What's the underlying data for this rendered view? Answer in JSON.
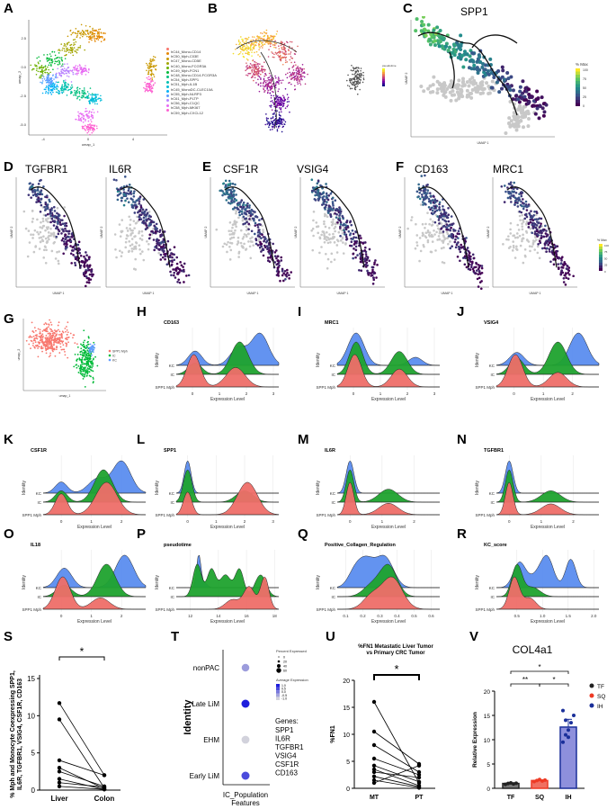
{
  "panels": {
    "A": {
      "label": "A",
      "xlabel": "umap_1",
      "ylabel": "umap_2",
      "yticks": [
        "2.5",
        "0.0",
        "-2.5",
        "-5.0"
      ],
      "xticks": [
        "-4",
        "0",
        "4"
      ],
      "legend": [
        {
          "text": "hC44_Mono-CD14",
          "color": "#f8766d"
        },
        {
          "text": "hC50_Mph-C03E",
          "color": "#e58700"
        },
        {
          "text": "hC47_Mono-CD5E",
          "color": "#c99800"
        },
        {
          "text": "hC40_Mono-FCGR3A",
          "color": "#a3a500"
        },
        {
          "text": "hC49_Mph-FCN1",
          "color": "#6bb100"
        },
        {
          "text": "hC48_Mono-CD14-FCGR3A",
          "color": "#00ba38"
        },
        {
          "text": "hC54_Mph-SPP1",
          "color": "#00bf7d"
        },
        {
          "text": "hC51_Mph-IL1B",
          "color": "#00c0af"
        },
        {
          "text": "hC45_MonoDC-CLEC10A",
          "color": "#00bcd8"
        },
        {
          "text": "hC55_Mph-NLRP3",
          "color": "#00b0f6"
        },
        {
          "text": "hC61_Mph-PLTP",
          "color": "#619cff"
        },
        {
          "text": "hC56_Mph-C1QC",
          "color": "#b983ff"
        },
        {
          "text": "hC58_Mph-MKI67",
          "color": "#e76bf3"
        },
        {
          "text": "hC59_Mph-CXCL12",
          "color": "#fd61d1"
        }
      ]
    },
    "B": {
      "label": "B",
      "legend_title": "pseudotime"
    },
    "C": {
      "label": "C",
      "gene": "SPP1",
      "xlabel": "UMAP 1",
      "ylabel": "UMAP 2",
      "legend_title": "% Max",
      "legend_ticks": [
        "100",
        "75",
        "50",
        "25",
        "0"
      ]
    },
    "D": {
      "label": "D",
      "genes": [
        "TGFBR1",
        "IL6R"
      ],
      "xlabel": "UMAP 1",
      "ylabel": "UMAP 2"
    },
    "E": {
      "label": "E",
      "genes": [
        "CSF1R",
        "VSIG4"
      ],
      "xlabel": "UMAP 1",
      "ylabel": "UMAP 2"
    },
    "F": {
      "label": "F",
      "genes": [
        "CD163",
        "MRC1"
      ],
      "xlabel": "UMAP 1",
      "ylabel": "UMAP 2",
      "legend_title": "% Max",
      "legend_ticks": [
        "100",
        "75",
        "50",
        "25",
        "0"
      ]
    },
    "G": {
      "label": "G",
      "xlabel": "umap_1",
      "ylabel": "umap_2",
      "legend": [
        {
          "text": "SPP1 Mph",
          "color": "#f8766d"
        },
        {
          "text": "IC",
          "color": "#00ba38"
        },
        {
          "text": "KC",
          "color": "#619cff"
        }
      ]
    }
  },
  "ridges": {
    "identity_label": "Identity",
    "xlabel": "Expression Level",
    "levels": [
      "KC",
      "IC",
      "SPP1 Mph"
    ],
    "colors": {
      "KC": "#5b8def",
      "IC": "#1fa22e",
      "SPP1 Mph": "#ee6e68"
    },
    "items": [
      {
        "label": "H",
        "title": "CD163",
        "ticks": [
          "0",
          "1",
          "2",
          "3"
        ],
        "min": -0.6,
        "max": 3.2,
        "KC": [
          [
            2.5,
            0.32,
            1.0
          ],
          [
            1.7,
            0.3,
            0.55
          ],
          [
            0.1,
            0.25,
            0.45
          ]
        ],
        "IC": [
          [
            1.75,
            0.32,
            1.0
          ],
          [
            0.1,
            0.25,
            0.35
          ]
        ],
        "SPP1 Mph": [
          [
            0.05,
            0.25,
            1.0
          ],
          [
            1.6,
            0.35,
            0.6
          ]
        ]
      },
      {
        "label": "I",
        "title": "MRC1",
        "ticks": [
          "0",
          "1",
          "2",
          "3"
        ],
        "min": -0.6,
        "max": 3.2,
        "KC": [
          [
            0.1,
            0.3,
            1.0
          ],
          [
            2.3,
            0.25,
            0.25
          ]
        ],
        "IC": [
          [
            0.1,
            0.25,
            0.85
          ],
          [
            1.7,
            0.3,
            0.6
          ]
        ],
        "SPP1 Mph": [
          [
            0.05,
            0.25,
            1.0
          ],
          [
            1.7,
            0.3,
            0.55
          ]
        ]
      },
      {
        "label": "J",
        "title": "VSIG4",
        "ticks": [
          "0",
          "1",
          "2"
        ],
        "min": -0.6,
        "max": 2.9,
        "KC": [
          [
            2.2,
            0.3,
            1.0
          ],
          [
            0.1,
            0.25,
            0.4
          ]
        ],
        "IC": [
          [
            1.5,
            0.3,
            0.9
          ],
          [
            0.1,
            0.25,
            0.45
          ]
        ],
        "SPP1 Mph": [
          [
            0.05,
            0.25,
            1.0
          ],
          [
            1.5,
            0.3,
            0.45
          ]
        ]
      },
      {
        "label": "K",
        "title": "CSF1R",
        "ticks": [
          "0",
          "1",
          "2"
        ],
        "min": -0.6,
        "max": 2.8,
        "KC": [
          [
            2.0,
            0.3,
            1.0
          ],
          [
            1.2,
            0.3,
            0.45
          ],
          [
            0.0,
            0.2,
            0.35
          ]
        ],
        "IC": [
          [
            1.4,
            0.3,
            1.0
          ],
          [
            0.0,
            0.2,
            0.35
          ]
        ],
        "SPP1 Mph": [
          [
            1.5,
            0.35,
            0.85
          ],
          [
            0.0,
            0.2,
            0.55
          ]
        ]
      },
      {
        "label": "L",
        "title": "SPP1",
        "ticks": [
          "0",
          "1",
          "2",
          "3"
        ],
        "min": -0.4,
        "max": 3.2,
        "KC": [
          [
            0.0,
            0.12,
            1.0
          ]
        ],
        "IC": [
          [
            0.0,
            0.15,
            1.0
          ],
          [
            2.0,
            0.3,
            0.35
          ]
        ],
        "SPP1 Mph": [
          [
            2.1,
            0.35,
            0.5
          ],
          [
            0.0,
            0.15,
            0.35
          ]
        ]
      },
      {
        "label": "M",
        "title": "IL6R",
        "ticks": [
          "0",
          "1",
          "2"
        ],
        "min": -0.4,
        "max": 2.8,
        "KC": [
          [
            0.0,
            0.12,
            1.0
          ]
        ],
        "IC": [
          [
            0.0,
            0.12,
            1.0
          ],
          [
            1.2,
            0.3,
            0.4
          ]
        ],
        "SPP1 Mph": [
          [
            0.0,
            0.12,
            0.85
          ],
          [
            1.2,
            0.3,
            0.3
          ]
        ]
      },
      {
        "label": "N",
        "title": "TGFBR1",
        "ticks": [
          "0",
          "1",
          "2"
        ],
        "min": -0.4,
        "max": 2.8,
        "KC": [
          [
            0.0,
            0.12,
            1.0
          ]
        ],
        "IC": [
          [
            0.0,
            0.12,
            1.0
          ],
          [
            1.3,
            0.3,
            0.35
          ]
        ],
        "SPP1 Mph": [
          [
            0.0,
            0.12,
            0.9
          ],
          [
            1.3,
            0.3,
            0.3
          ]
        ]
      },
      {
        "label": "O",
        "title": "IL18",
        "ticks": [
          "0",
          "1",
          "2"
        ],
        "min": -0.6,
        "max": 2.8,
        "KC": [
          [
            2.1,
            0.3,
            1.0
          ],
          [
            0.1,
            0.25,
            0.6
          ]
        ],
        "IC": [
          [
            1.5,
            0.3,
            1.0
          ],
          [
            0.1,
            0.25,
            0.35
          ]
        ],
        "SPP1 Mph": [
          [
            0.05,
            0.25,
            1.0
          ],
          [
            1.3,
            0.3,
            0.35
          ]
        ]
      },
      {
        "label": "P",
        "title": "pseudotime",
        "ticks": [
          "12",
          "14",
          "16",
          "18"
        ],
        "min": 11.0,
        "max": 18.3,
        "KC": [
          [
            12.6,
            0.15,
            1.0
          ],
          [
            13.0,
            0.2,
            0.15
          ]
        ],
        "IC": [
          [
            12.5,
            0.3,
            0.3
          ],
          [
            13.5,
            0.3,
            0.25
          ],
          [
            14.5,
            0.4,
            0.2
          ],
          [
            15.5,
            0.3,
            0.25
          ],
          [
            17.0,
            0.4,
            0.2
          ]
        ],
        "SPP1 Mph": [
          [
            17.3,
            0.3,
            0.5
          ],
          [
            16.2,
            0.4,
            0.35
          ],
          [
            15.0,
            0.5,
            0.15
          ]
        ]
      },
      {
        "label": "Q",
        "title": "Positive_Collagen_Regulation",
        "ticks": [
          "0.1",
          "0.2",
          "0.3",
          "0.4",
          "0.5",
          "0.6"
        ],
        "min": 0.05,
        "max": 0.65,
        "KC": [
          [
            0.22,
            0.05,
            0.85
          ],
          [
            0.33,
            0.05,
            0.95
          ],
          [
            0.15,
            0.04,
            0.4
          ]
        ],
        "IC": [
          [
            0.35,
            0.05,
            1.0
          ],
          [
            0.25,
            0.05,
            0.35
          ]
        ],
        "SPP1 Mph": [
          [
            0.37,
            0.06,
            1.0
          ],
          [
            0.25,
            0.05,
            0.4
          ]
        ]
      },
      {
        "label": "R",
        "title": "KC_score",
        "ticks": [
          "0.5",
          "1.0",
          "1.5",
          "2.0"
        ],
        "min": 0.1,
        "max": 2.1,
        "KC": [
          [
            0.55,
            0.12,
            0.7
          ],
          [
            1.1,
            0.12,
            0.75
          ],
          [
            1.55,
            0.1,
            0.8
          ],
          [
            0.9,
            0.15,
            0.35
          ]
        ],
        "IC": [
          [
            0.5,
            0.1,
            1.0
          ],
          [
            0.8,
            0.15,
            0.3
          ]
        ],
        "SPP1 Mph": [
          [
            0.45,
            0.1,
            1.0
          ],
          [
            0.75,
            0.12,
            0.35
          ]
        ]
      }
    ]
  },
  "S": {
    "label": "S",
    "ylabel": "% Mph and Monocyte Coexpressing SPP1, IL6R, TGFBR1, VSIG4, CSF1R, CD163",
    "categories": [
      "Liver",
      "Colon"
    ],
    "yticks": [
      "0",
      "5",
      "10",
      "15"
    ],
    "significance": "*"
  },
  "T": {
    "label": "T",
    "ylabel": "Identity",
    "xlabel": "IC_Population Features",
    "rows": [
      "nonPAC",
      "Late LiM",
      "EHM",
      "Early LiM"
    ],
    "legend_pct_title": "Percent Expressed",
    "legend_pct": [
      "0",
      "20",
      "40",
      "60"
    ],
    "legend_avg_title": "Average Expression",
    "legend_avg": [
      "1.0",
      "0.5",
      "0.0",
      "-0.5",
      "-1.0"
    ],
    "genes_title": "Genes:",
    "genes": [
      "SPP1",
      "IL6R",
      "TGFBR1",
      "VSIG4",
      "CSF1R",
      "CD163"
    ]
  },
  "U": {
    "label": "U",
    "title_line1": "%FN1 Metastatic Liver Tumor",
    "title_line2": "vs Primary CRC Tumor",
    "ylabel": "%FN1",
    "categories": [
      "MT",
      "PT"
    ],
    "yticks": [
      "0",
      "5",
      "10",
      "15",
      "20"
    ],
    "significance": "*"
  },
  "V": {
    "label": "V",
    "title": "COL4a1",
    "ylabel": "Relative Expression",
    "categories": [
      "TF",
      "SQ",
      "IH"
    ],
    "yticks": [
      "0",
      "5",
      "10",
      "15",
      "20"
    ],
    "significance": [
      "**",
      "*",
      "*"
    ],
    "legend": [
      {
        "text": "TF",
        "color": "#222222"
      },
      {
        "text": "SQ",
        "color": "#ee3a24"
      },
      {
        "text": "IH",
        "color": "#1a2f9a"
      }
    ]
  },
  "chart_data": [
    {
      "type": "scatter",
      "panel": "S",
      "title": "",
      "xlabel": "",
      "ylabel": "% Mph and Monocyte Coexpressing SPP1, IL6R, TGFBR1, VSIG4, CSF1R, CD163",
      "categories": [
        "Liver",
        "Colon"
      ],
      "ylim": [
        0,
        15
      ],
      "pairs": [
        [
          11.7,
          2.0
        ],
        [
          9.5,
          0.3
        ],
        [
          4.0,
          2.0
        ],
        [
          3.0,
          0.2
        ],
        [
          2.5,
          0.5
        ],
        [
          1.5,
          0.1
        ],
        [
          1.0,
          0.4
        ],
        [
          0.5,
          0.1
        ]
      ]
    },
    {
      "type": "scatter",
      "panel": "U",
      "title": "%FN1 Metastatic Liver Tumor vs Primary CRC Tumor",
      "xlabel": "",
      "ylabel": "%FN1",
      "categories": [
        "MT",
        "PT"
      ],
      "ylim": [
        0,
        20
      ],
      "pairs": [
        [
          16.0,
          1.0
        ],
        [
          10.5,
          4.5
        ],
        [
          8.0,
          3.0
        ],
        [
          5.5,
          2.5
        ],
        [
          4.2,
          1.2
        ],
        [
          3.5,
          0.5
        ],
        [
          3.0,
          2.0
        ],
        [
          2.2,
          0.3
        ],
        [
          1.5,
          0.1
        ],
        [
          1.0,
          4.2
        ]
      ]
    },
    {
      "type": "bar",
      "panel": "V",
      "title": "COL4a1",
      "xlabel": "",
      "ylabel": "Relative Expression",
      "categories": [
        "TF",
        "SQ",
        "IH"
      ],
      "values": [
        1.0,
        1.6,
        12.6
      ],
      "errors": [
        0.1,
        0.15,
        1.6
      ],
      "ylim": [
        0,
        20
      ],
      "points": [
        [
          0.8,
          1.0,
          1.1,
          0.9,
          1.05
        ],
        [
          1.4,
          1.6,
          1.8,
          1.5,
          1.7
        ],
        [
          9.5,
          11.0,
          12.0,
          13.5,
          15.0,
          16.0,
          14.0,
          10.5
        ]
      ]
    },
    {
      "type": "scatter",
      "panel": "T",
      "title": "",
      "xlabel": "IC_Population Features",
      "ylabel": "Identity",
      "categories": [
        "nonPAC",
        "Late LiM",
        "EHM",
        "Early LiM"
      ],
      "avg_expression": [
        -0.4,
        1.0,
        -1.0,
        0.5
      ],
      "pct_expressed": [
        35,
        40,
        38,
        40
      ]
    }
  ]
}
